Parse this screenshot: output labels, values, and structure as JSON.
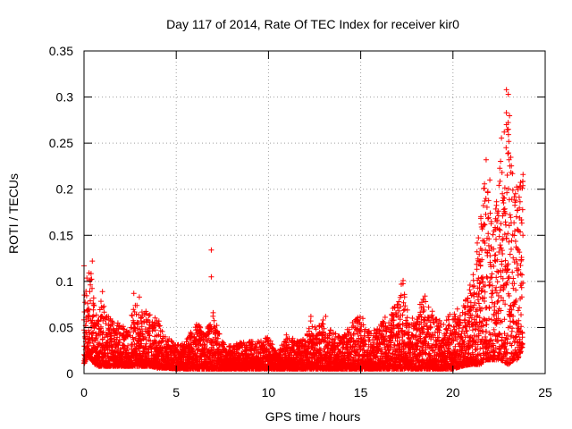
{
  "chart_data": {
    "type": "scatter",
    "title": "Day 117 of 2014, Rate Of TEC Index for receiver kir0",
    "xlabel": "GPS time / hours",
    "ylabel": "ROTI / TECUs",
    "xlim": [
      0,
      25
    ],
    "ylim": [
      0,
      0.35
    ],
    "xticks": [
      0,
      5,
      10,
      15,
      20,
      25
    ],
    "xtick_labels": [
      "0",
      "5",
      "10",
      "15",
      "20",
      "25"
    ],
    "yticks": [
      0,
      0.05,
      0.1,
      0.15,
      0.2,
      0.25,
      0.3,
      0.35
    ],
    "ytick_labels": [
      "0",
      "0.05",
      "0.1",
      "0.15",
      "0.2",
      "0.25",
      "0.3",
      "0.35"
    ],
    "grid": true,
    "legend": "none",
    "marker": "plus",
    "color": "#ff0000",
    "series": [
      {
        "envelope": [
          [
            0.0,
            0.01,
            0.09
          ],
          [
            0.1,
            0.015,
            0.115
          ],
          [
            0.2,
            0.02,
            0.105
          ],
          [
            0.4,
            0.015,
            0.12
          ],
          [
            0.6,
            0.01,
            0.07
          ],
          [
            0.8,
            0.008,
            0.06
          ],
          [
            1.0,
            0.008,
            0.09
          ],
          [
            1.3,
            0.008,
            0.065
          ],
          [
            1.6,
            0.008,
            0.055
          ],
          [
            2.0,
            0.008,
            0.055
          ],
          [
            2.4,
            0.008,
            0.05
          ],
          [
            2.8,
            0.008,
            0.087
          ],
          [
            3.2,
            0.008,
            0.07
          ],
          [
            3.6,
            0.008,
            0.065
          ],
          [
            4.0,
            0.006,
            0.06
          ],
          [
            4.5,
            0.006,
            0.04
          ],
          [
            5.0,
            0.005,
            0.035
          ],
          [
            5.5,
            0.005,
            0.033
          ],
          [
            6.0,
            0.005,
            0.06
          ],
          [
            6.5,
            0.005,
            0.045
          ],
          [
            7.0,
            0.005,
            0.065
          ],
          [
            7.5,
            0.005,
            0.035
          ],
          [
            8.0,
            0.005,
            0.03
          ],
          [
            8.5,
            0.005,
            0.035
          ],
          [
            9.0,
            0.005,
            0.035
          ],
          [
            9.5,
            0.005,
            0.035
          ],
          [
            10.0,
            0.005,
            0.04
          ],
          [
            10.5,
            0.005,
            0.02
          ],
          [
            11.0,
            0.005,
            0.045
          ],
          [
            11.5,
            0.005,
            0.035
          ],
          [
            12.0,
            0.005,
            0.04
          ],
          [
            12.3,
            0.005,
            0.06
          ],
          [
            12.6,
            0.005,
            0.05
          ],
          [
            13.0,
            0.005,
            0.06
          ],
          [
            13.5,
            0.005,
            0.045
          ],
          [
            14.0,
            0.005,
            0.04
          ],
          [
            14.5,
            0.005,
            0.055
          ],
          [
            15.0,
            0.005,
            0.065
          ],
          [
            15.5,
            0.005,
            0.045
          ],
          [
            16.0,
            0.005,
            0.05
          ],
          [
            16.5,
            0.005,
            0.07
          ],
          [
            17.0,
            0.005,
            0.075
          ],
          [
            17.3,
            0.005,
            0.1
          ],
          [
            17.6,
            0.005,
            0.06
          ],
          [
            18.0,
            0.005,
            0.07
          ],
          [
            18.5,
            0.005,
            0.085
          ],
          [
            19.0,
            0.005,
            0.065
          ],
          [
            19.5,
            0.005,
            0.055
          ],
          [
            20.0,
            0.005,
            0.07
          ],
          [
            20.5,
            0.008,
            0.075
          ],
          [
            21.0,
            0.01,
            0.1
          ],
          [
            21.5,
            0.01,
            0.17
          ],
          [
            21.8,
            0.015,
            0.23
          ],
          [
            22.2,
            0.015,
            0.15
          ],
          [
            22.6,
            0.015,
            0.27
          ],
          [
            23.0,
            0.01,
            0.31
          ],
          [
            23.3,
            0.015,
            0.23
          ],
          [
            23.5,
            0.015,
            0.2
          ],
          [
            23.8,
            0.03,
            0.215
          ]
        ],
        "outliers": [
          [
            0.0,
            0.117
          ],
          [
            0.45,
            0.122
          ],
          [
            1.0,
            0.089
          ],
          [
            2.7,
            0.087
          ],
          [
            3.0,
            0.083
          ],
          [
            6.9,
            0.134
          ],
          [
            6.9,
            0.105
          ],
          [
            7.0,
            0.066
          ],
          [
            12.3,
            0.062
          ],
          [
            13.1,
            0.062
          ],
          [
            17.3,
            0.101
          ],
          [
            17.2,
            0.097
          ],
          [
            21.8,
            0.232
          ],
          [
            22.0,
            0.21
          ],
          [
            22.9,
            0.308
          ],
          [
            23.0,
            0.303
          ],
          [
            22.9,
            0.27
          ],
          [
            23.0,
            0.265
          ],
          [
            23.8,
            0.216
          ]
        ]
      }
    ]
  }
}
